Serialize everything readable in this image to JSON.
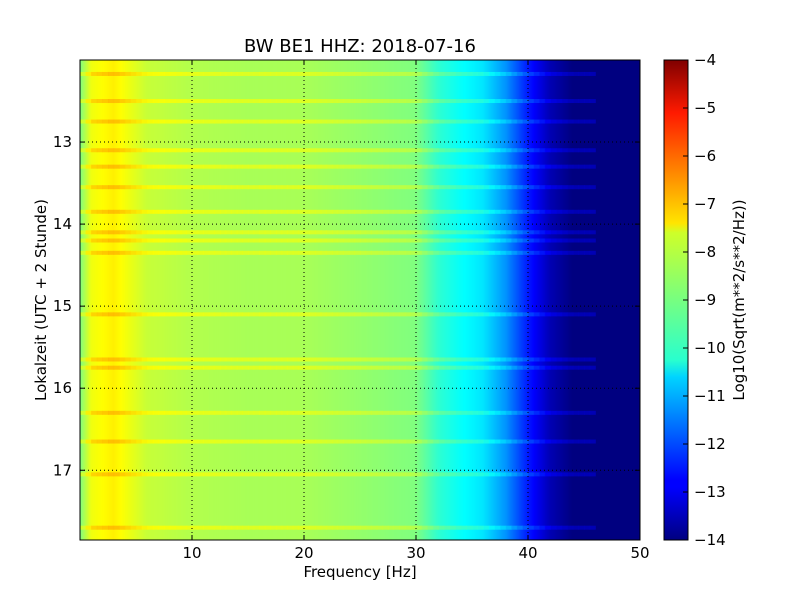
{
  "chart_data": {
    "type": "heatmap",
    "title": "BW BE1 HHZ: 2018-07-16",
    "xlabel": "Frequency [Hz]",
    "ylabel": "Lokalzeit (UTC + 2 Stunde)",
    "colorbar_label": "Log10(Sqrt(m**2/s**2/Hz))",
    "xlim": [
      0,
      50
    ],
    "ylim": [
      17.85,
      12.0
    ],
    "clim": [
      -14,
      -4
    ],
    "colormap": "jet",
    "grid": true,
    "x_ticks": [
      10,
      20,
      30,
      40,
      50
    ],
    "x_tick_labels": [
      "10",
      "20",
      "30",
      "40",
      "50"
    ],
    "y_ticks": [
      13,
      14,
      15,
      16,
      17
    ],
    "y_tick_labels": [
      "13",
      "14",
      "15",
      "16",
      "17"
    ],
    "cbar_ticks": [
      -4,
      -5,
      -6,
      -7,
      -8,
      -9,
      -10,
      -11,
      -12,
      -13,
      -14
    ],
    "cbar_tick_labels": [
      "−4",
      "−5",
      "−6",
      "−7",
      "−8",
      "−9",
      "−10",
      "−11",
      "−12",
      "−13",
      "−14"
    ],
    "spectrum_profile": {
      "frequency": [
        0,
        1,
        3,
        6,
        10,
        15,
        20,
        25,
        30,
        32,
        34,
        36,
        38,
        40,
        42,
        44,
        46,
        50
      ],
      "value": [
        -9.0,
        -7.9,
        -7.6,
        -8.3,
        -8.5,
        -8.6,
        -8.6,
        -8.8,
        -9.0,
        -9.8,
        -10.2,
        -10.5,
        -11.3,
        -12.5,
        -13.5,
        -14,
        -14,
        -14
      ]
    },
    "horizontal_bands": [
      12.17,
      12.5,
      12.75,
      13.1,
      13.3,
      13.55,
      13.85,
      14.1,
      14.2,
      14.35,
      15.1,
      15.65,
      15.75,
      16.3,
      16.65,
      17.05,
      17.7
    ]
  }
}
